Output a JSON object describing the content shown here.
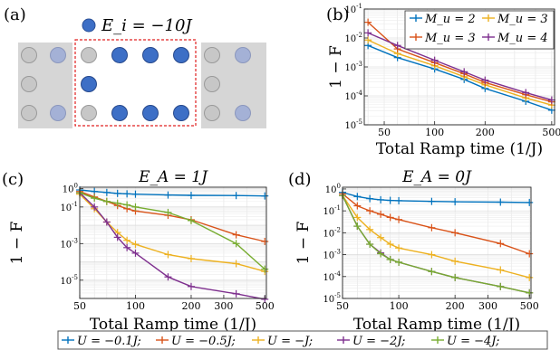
{
  "panel_labels": {
    "a": "(a)",
    "b": "(b)",
    "c": "(c)",
    "d": "(d)"
  },
  "lattice_legend": "E_i = −10J",
  "colors": {
    "series_b": [
      "#0072BD",
      "#EDB120",
      "#D95319",
      "#7E2F8E"
    ],
    "series_cd": [
      "#0072BD",
      "#D95319",
      "#EDB120",
      "#7E2F8E",
      "#77AC30"
    ],
    "site_filled": "#3D6FC6",
    "site_light": "#A4B1D6",
    "site_gray": "#C7C7C7",
    "dashed_box": "#E02020",
    "shaded": "#D6D6D6"
  },
  "bottom_legend": {
    "entries": [
      "U = −0.1J;",
      "U = −0.5J;",
      "U = −J;",
      "U = −2J;",
      "U = −4J;"
    ]
  },
  "chart_data": [
    {
      "panel": "b",
      "type": "line",
      "scale": "log-log",
      "xlabel": "Total Ramp time (1/J)",
      "ylabel": "1 − F",
      "xlim": [
        38,
        520
      ],
      "ylim": [
        1e-05,
        0.1
      ],
      "xticks": [
        50,
        100,
        200,
        500
      ],
      "yticks": [
        "10^{-5}",
        "10^{-4}",
        "10^{-3}",
        "10^{-2}",
        "10^{-1}"
      ],
      "grid": true,
      "legend_position": "top-right",
      "legend": [
        "M_u = 2",
        "M_u = 3",
        "M_u = 3",
        "M_u = 4"
      ],
      "x": [
        40,
        60,
        100,
        150,
        200,
        350,
        500
      ],
      "series": [
        {
          "name": "M_u = 2",
          "values": [
            0.0055,
            0.0021,
            0.00085,
            0.00037,
            0.00018,
            6.5e-05,
            3.2e-05
          ]
        },
        {
          "name": "M_u = 3",
          "values": [
            0.0085,
            0.0029,
            0.0011,
            0.00046,
            0.00024,
            8.5e-05,
            4.8e-05
          ]
        },
        {
          "name": "M_u = 3",
          "values": [
            0.035,
            0.0042,
            0.0014,
            0.00058,
            0.00029,
            0.00011,
            6.2e-05
          ]
        },
        {
          "name": "M_u = 4",
          "values": [
            0.015,
            0.0055,
            0.0017,
            0.00068,
            0.00035,
            0.00013,
            7.2e-05
          ]
        }
      ]
    },
    {
      "panel": "c",
      "type": "line",
      "scale": "log-log",
      "title": "E_A = 1J",
      "xlabel": "Total Ramp time (1/J)",
      "ylabel": "1 − F",
      "xlim": [
        50,
        510
      ],
      "ylim": [
        1e-06,
        1.2
      ],
      "xticks": [
        50,
        100,
        200,
        300,
        500
      ],
      "yticks": [
        "10^{-5}",
        "10^{-3}",
        "10^{-1}",
        "10^{0}"
      ],
      "grid": true,
      "x": [
        50,
        60,
        70,
        80,
        90,
        100,
        150,
        200,
        350,
        500
      ],
      "series": [
        {
          "name": "U = −0.1J;",
          "values": [
            0.85,
            0.7,
            0.62,
            0.55,
            0.52,
            0.5,
            0.45,
            0.43,
            0.42,
            0.4
          ]
        },
        {
          "name": "U = −0.5J;",
          "values": [
            0.7,
            0.35,
            0.2,
            0.12,
            0.08,
            0.06,
            0.035,
            0.02,
            0.003,
            0.0013
          ]
        },
        {
          "name": "U = −J;",
          "values": [
            0.5,
            0.08,
            0.015,
            0.004,
            0.0015,
            0.0009,
            0.00025,
            0.00015,
            8e-05,
            3e-05
          ]
        },
        {
          "name": "U = −2J;",
          "values": [
            0.6,
            0.1,
            0.015,
            0.0022,
            0.0006,
            0.0003,
            1.5e-05,
            4.5e-06,
            1.8e-06,
            9e-07
          ]
        },
        {
          "name": "U = −4J;",
          "values": [
            0.6,
            0.3,
            0.2,
            0.16,
            0.13,
            0.1,
            0.05,
            0.018,
            0.001,
            4e-05
          ]
        }
      ]
    },
    {
      "panel": "d",
      "type": "line",
      "scale": "log-log",
      "title": "E_A = 0J",
      "xlabel": "Total Ramp time (1/J)",
      "ylabel": "1 − F",
      "xlim": [
        50,
        510
      ],
      "ylim": [
        1e-05,
        1.2
      ],
      "xticks": [
        50,
        100,
        200,
        300,
        500
      ],
      "yticks": [
        "10^{-5}",
        "10^{-4}",
        "10^{-3}",
        "10^{-2}",
        "10^{-1}",
        "10^{0}"
      ],
      "grid": true,
      "x": [
        50,
        60,
        70,
        80,
        90,
        100,
        150,
        200,
        350,
        500
      ],
      "series": [
        {
          "name": "U = −0.1J;",
          "values": [
            0.7,
            0.45,
            0.36,
            0.32,
            0.3,
            0.29,
            0.27,
            0.26,
            0.25,
            0.24
          ]
        },
        {
          "name": "U = −0.5J;",
          "values": [
            0.6,
            0.17,
            0.1,
            0.07,
            0.05,
            0.04,
            0.017,
            0.01,
            0.0032,
            0.0011
          ]
        },
        {
          "name": "U = −J;",
          "values": [
            0.5,
            0.05,
            0.014,
            0.006,
            0.003,
            0.002,
            0.001,
            0.0005,
            0.0002,
            9e-05
          ]
        },
        {
          "name": "U = −2J;",
          "values": [
            0.5,
            0.02,
            0.003,
            0.0012,
            0.0006,
            0.00045,
            0.00017,
            9e-05,
            3.5e-05,
            1.8e-05
          ]
        },
        {
          "name": "U = −4J;",
          "values": [
            0.5,
            0.02,
            0.003,
            0.0011,
            0.0006,
            0.00045,
            0.00017,
            9e-05,
            3.5e-05,
            1.8e-05
          ]
        }
      ]
    }
  ]
}
